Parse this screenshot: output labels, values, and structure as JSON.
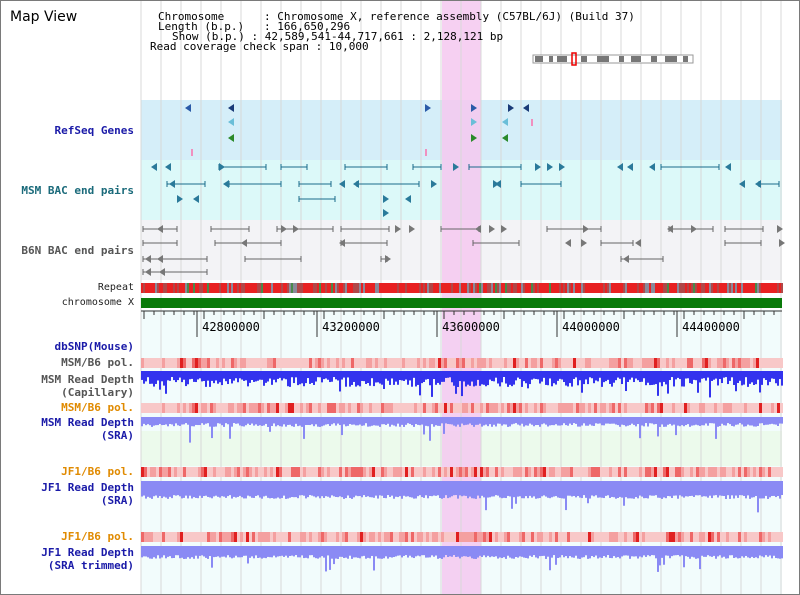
{
  "title": "Map View",
  "info": {
    "chromosome_key": "Chromosome",
    "chromosome_value": "Chromosome X, reference assembly (C57BL/6J) (Build 37)",
    "length_key": "Length (b.p.)",
    "length_value": "166,650,296",
    "show_key": "Show (b.p.)",
    "show_value": "42,589,541-44,717,661 : 2,128,121 bp",
    "coverage_key": "Read coverage check span",
    "coverage_value": "10,000"
  },
  "tracks": {
    "refseq": "RefSeq Genes",
    "msm_bac": "MSM BAC end pairs",
    "b6n_bac": "B6N BAC end pairs",
    "repeat": "Repeat",
    "chromosome": "chromosome X",
    "dbsnp": "dbSNP(Mouse)",
    "msm_b6_pol_1": "MSM/B6 pol.",
    "msm_depth_cap_1": "MSM Read Depth",
    "msm_depth_cap_2": "(Capillary)",
    "msm_b6_pol_2": "MSM/B6 pol.",
    "msm_depth_sra_1": "MSM Read Depth",
    "msm_depth_sra_2": "(SRA)",
    "jf1_b6_pol_1": "JF1/B6 pol.",
    "jf1_depth_sra_1": "JF1 Read Depth",
    "jf1_depth_sra_2": "(SRA)",
    "jf1_b6_pol_2": "JF1/B6 pol.",
    "jf1_depth_trim_1": "JF1 Read Depth",
    "jf1_depth_trim_2": "(SRA trimmed)"
  },
  "ruler": {
    "ticks": [
      "42800000",
      "43200000",
      "43600000",
      "44000000",
      "44400000"
    ]
  },
  "colors": {
    "refseq_bg": "#d5eef9",
    "msm_bg": "#dcf9f9",
    "b6n_bg": "#f3f3f6",
    "highlight": "#f4c8f0",
    "chrom": "#0a7a0a",
    "depth_capillary": "#3333ee",
    "depth_sra": "#8a8af4"
  }
}
